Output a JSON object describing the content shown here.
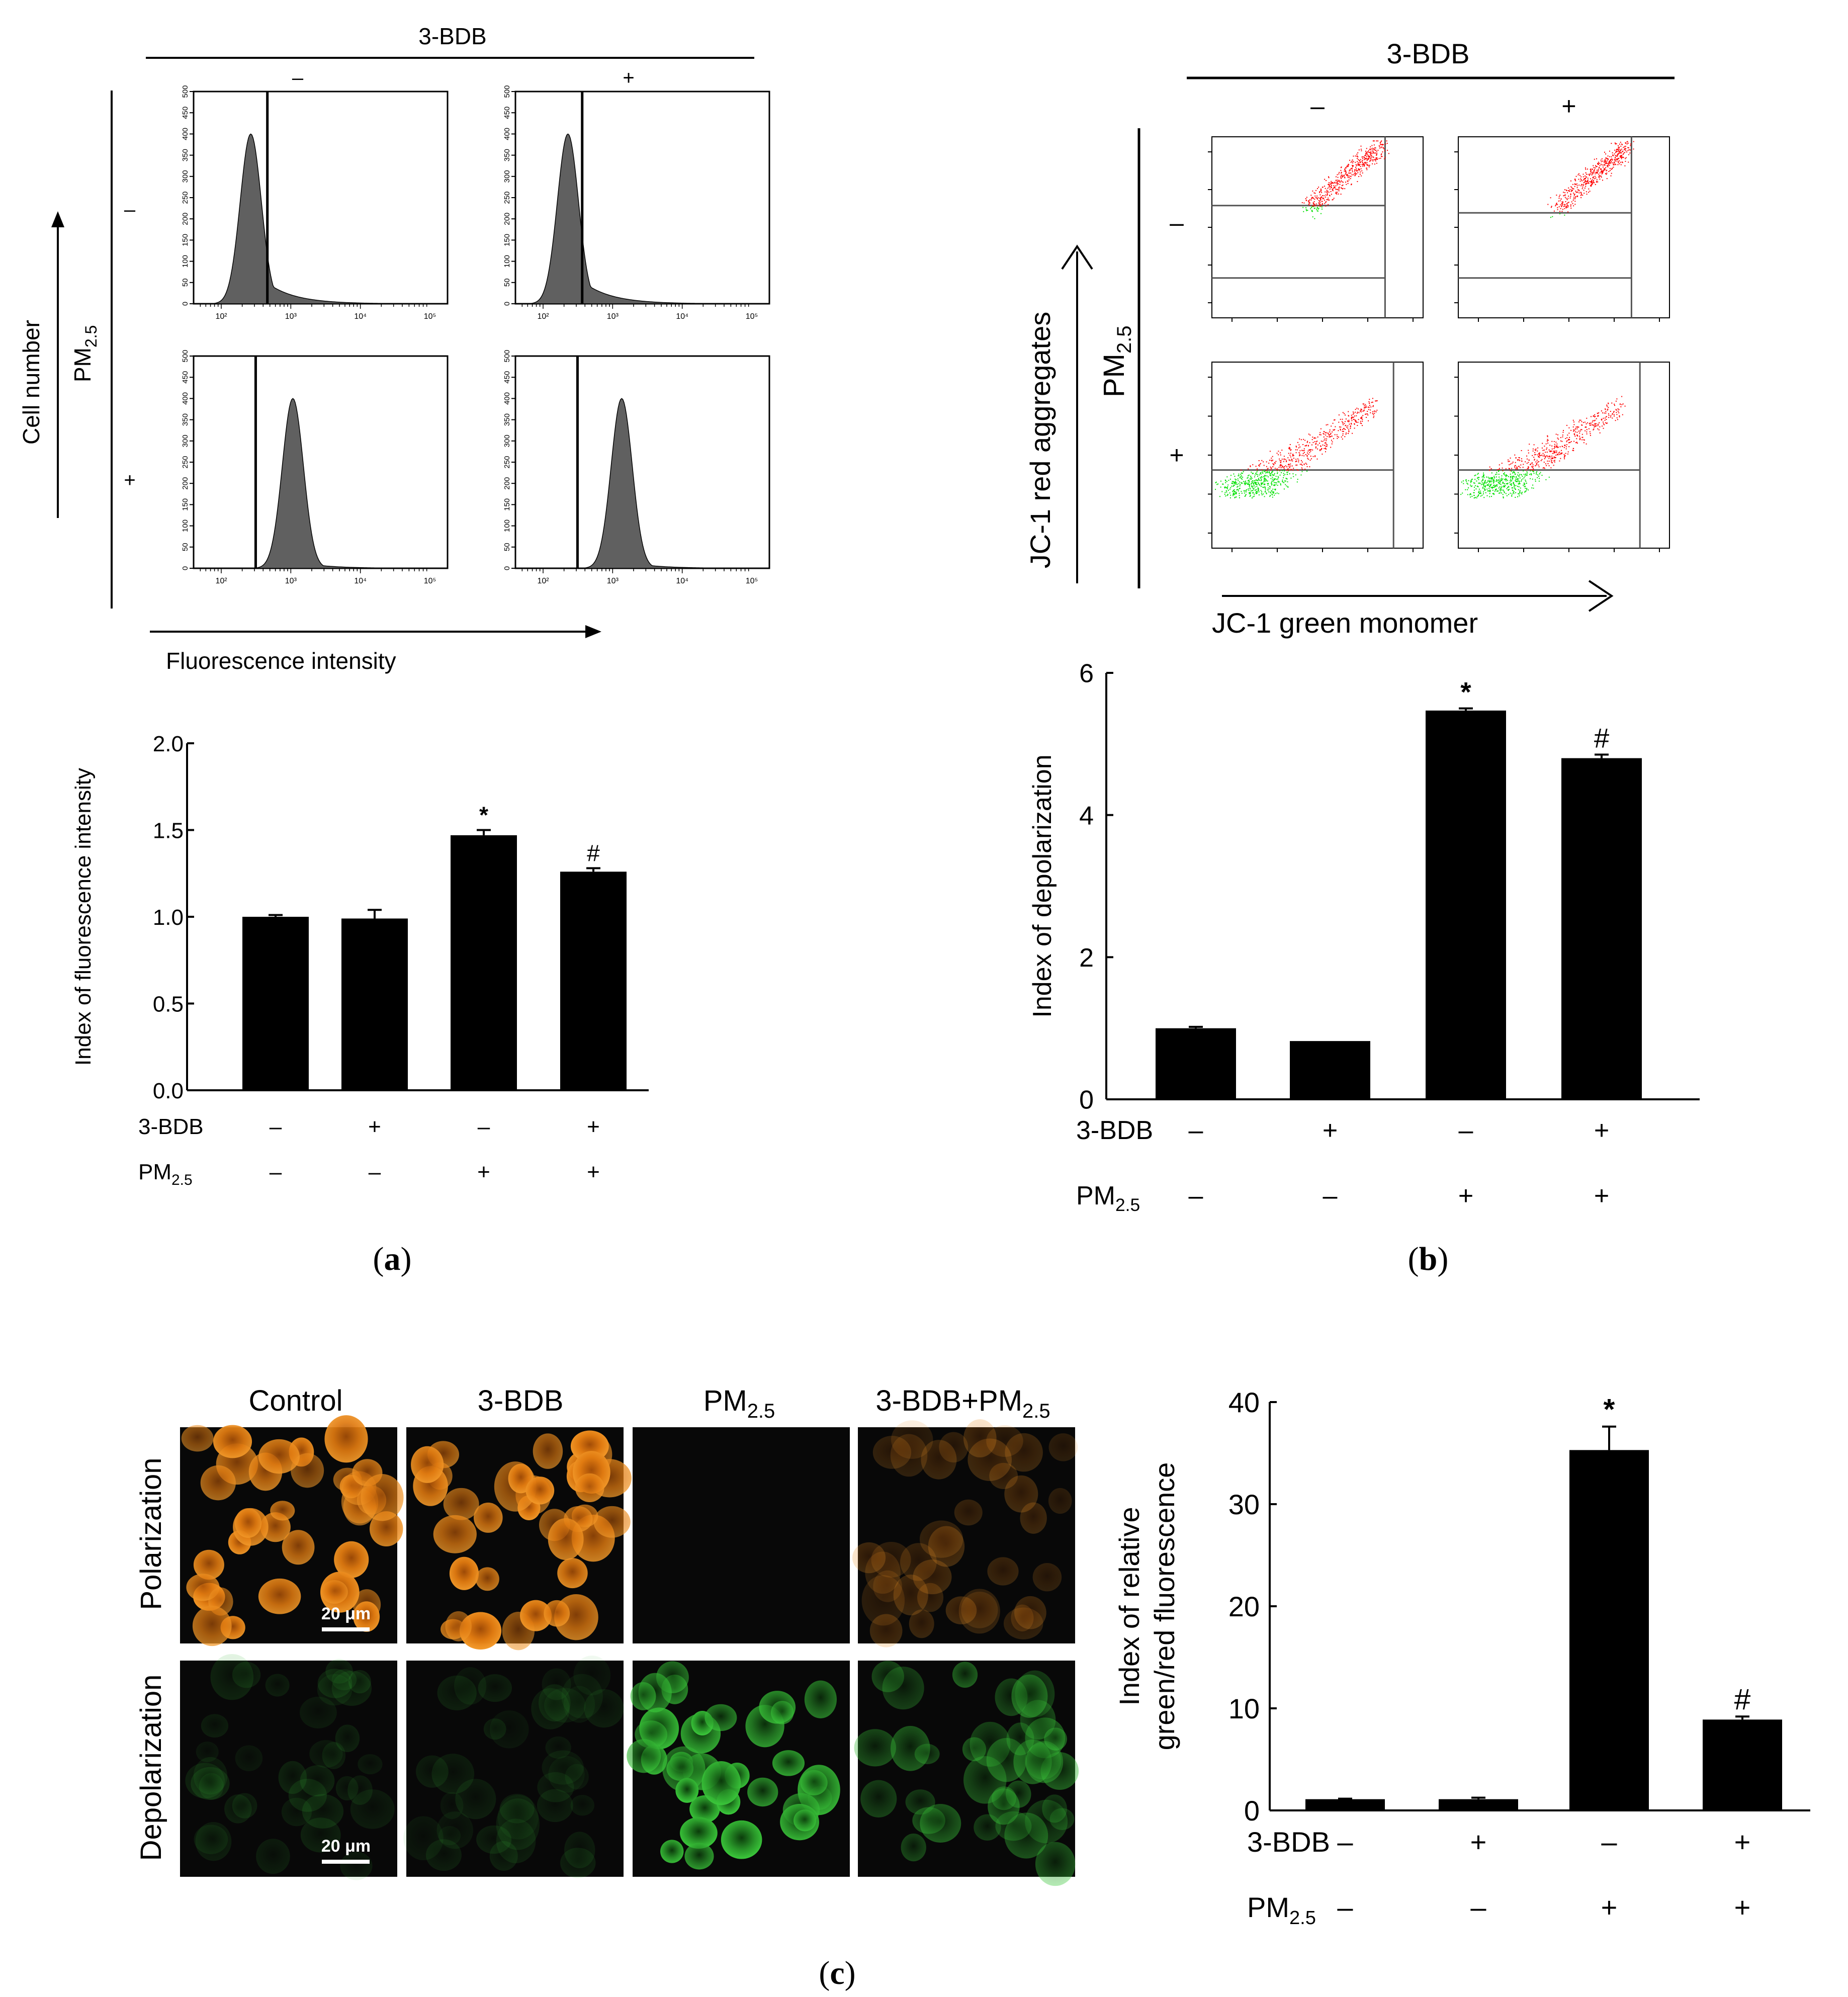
{
  "figure": {
    "panel_a": {
      "letter": "a",
      "header": "3-BDB",
      "col_labels": [
        "–",
        "+"
      ],
      "row_axis_label": "PM2.5",
      "row_labels": [
        "–",
        "+"
      ],
      "y_arrow_label": "Cell number",
      "x_arrow_label": "Fluorescence intensity",
      "histogram_y_ticks": [
        "0",
        "50",
        "100",
        "150",
        "200",
        "250",
        "300",
        "350",
        "400",
        "450",
        "500"
      ],
      "histogram_x_ticks": [
        "10²",
        "10³",
        "10⁴",
        "10⁵"
      ]
    },
    "panel_b": {
      "letter": "b",
      "header": "3-BDB",
      "col_labels": [
        "–",
        "+"
      ],
      "row_axis_label": "PM2.5",
      "row_labels": [
        "–",
        "+"
      ],
      "y_arrow_label": "JC-1 red aggregates",
      "x_arrow_label": "JC-1 green monomer"
    },
    "panel_c": {
      "letter": "c",
      "col_labels": [
        "Control",
        "3-BDB",
        "PM2.5",
        "3-BDB+PM2.5"
      ],
      "row_labels": [
        "Polarization",
        "Depolarization"
      ],
      "scale_bar": "20 μm"
    },
    "treatment_rows": {
      "row1_label": "3-BDB",
      "row1_values": [
        "–",
        "+",
        "–",
        "+"
      ],
      "row2_label": "PM2.5",
      "row2_values": [
        "–",
        "–",
        "+",
        "+"
      ]
    },
    "colors": {
      "bar": "#000000",
      "histogram_fill": "#606060",
      "dot_red": "#ff0000",
      "dot_green": "#00e000",
      "polarization_cells": "#e07a10",
      "depolarization_cells": "#2fae2f"
    }
  },
  "chart_data": [
    {
      "type": "bar",
      "panel": "a",
      "ylabel": "Index of fluorescence intensity",
      "ylim": [
        0,
        2.0
      ],
      "yticks": [
        "0.0",
        "0.5",
        "1.0",
        "1.5",
        "2.0"
      ],
      "categories": [
        "1",
        "2",
        "3",
        "4"
      ],
      "values": [
        1.0,
        0.99,
        1.47,
        1.26
      ],
      "errors": [
        0.01,
        0.05,
        0.03,
        0.02
      ],
      "annotations": [
        "",
        "",
        "*",
        "#"
      ]
    },
    {
      "type": "bar",
      "panel": "b",
      "ylabel": "Index of depolarization",
      "ylim": [
        0,
        6
      ],
      "yticks": [
        "0",
        "2",
        "4",
        "6"
      ],
      "categories": [
        "1",
        "2",
        "3",
        "4"
      ],
      "values": [
        1.0,
        0.82,
        5.47,
        4.8
      ],
      "errors": [
        0.02,
        0.0,
        0.03,
        0.05
      ],
      "annotations": [
        "",
        "",
        "*",
        "#"
      ]
    },
    {
      "type": "bar",
      "panel": "c",
      "ylabel_line1": "Index of relative",
      "ylabel_line2": "green/red fluorescence",
      "ylim": [
        0,
        40
      ],
      "yticks": [
        "0",
        "10",
        "20",
        "30",
        "40"
      ],
      "categories": [
        "1",
        "2",
        "3",
        "4"
      ],
      "values": [
        1.1,
        1.1,
        35.3,
        8.9
      ],
      "errors": [
        0.05,
        0.15,
        2.3,
        0.3
      ],
      "annotations": [
        "",
        "",
        "*",
        "#"
      ]
    }
  ]
}
